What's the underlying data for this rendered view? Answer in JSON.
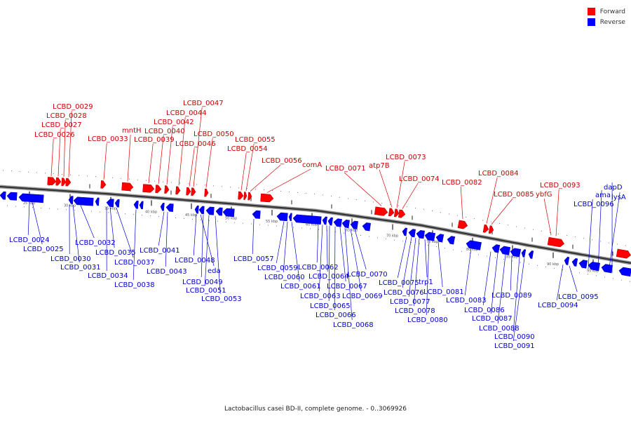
{
  "legend": {
    "forward": {
      "label": "Forward",
      "color": "#ff0000"
    },
    "reverse": {
      "label": "Reverse",
      "color": "#0000ff"
    }
  },
  "caption": "Lactobacillus casei BD-II, complete genome. - 0..3069926",
  "kbp_ticks": [
    "25 kbp",
    "30 kbp",
    "35 kbp",
    "40 kbp",
    "45 kbp",
    "50 kbp",
    "55 kbp",
    "60 kbp",
    "65 kbp",
    "70 kbp",
    "75 kbp",
    "80 kbp",
    "85 kbp",
    "90 kbp",
    "95 kbp"
  ],
  "forward_labels": [
    "LCBD_0026",
    "LCBD_0027",
    "LCBD_0028",
    "LCBD_0029",
    "LCBD_0033",
    "mntH",
    "LCBD_0039",
    "LCBD_0040",
    "LCBD_0042",
    "LCBD_0044",
    "LCBD_0046",
    "LCBD_0047",
    "LCBD_0050",
    "LCBD_0054",
    "LCBD_0055",
    "LCBD_0056",
    "comA",
    "LCBD_0071",
    "atp7B",
    "LCBD_0073",
    "LCBD_0074",
    "LCBD_0082",
    "LCBD_0084",
    "LCBD_0085",
    "ybfG",
    "LCBD_0093"
  ],
  "reverse_labels": [
    "LCBD_0024",
    "LCBD_0025",
    "LCBD_0030",
    "LCBD_0031",
    "LCBD_0032",
    "LCBD_0034",
    "LCBD_0035",
    "LCBD_0037",
    "LCBD_0038",
    "LCBD_0041",
    "LCBD_0043",
    "LCBD_0048",
    "eda",
    "LCBD_0049",
    "LCBD_0051",
    "LCBD_0053",
    "LCBD_0057",
    "LCBD_0059",
    "LCBD_0060",
    "LCBD_0061",
    "LCBD_0062",
    "LCBD_0063",
    "LCBD_0064",
    "LCBD_0065",
    "LCBD_0066",
    "LCBD_0067",
    "LCBD_0068",
    "LCBD_0069",
    "LCBD_0070",
    "LCBD_0075",
    "LCBD_0076",
    "LCBD_0077",
    "LCBD_0078",
    "trp1",
    "LCBD_0080",
    "LCBD_0081",
    "LCBD_0083",
    "LCBD_0086",
    "LCBD_0087",
    "LCBD_0088",
    "LCBD_0089",
    "LCBD_0090",
    "LCBD_0091",
    "LCBD_0094",
    "LCBD_0095",
    "LCBD_0096",
    "ama",
    "lysA",
    "dapD"
  ]
}
